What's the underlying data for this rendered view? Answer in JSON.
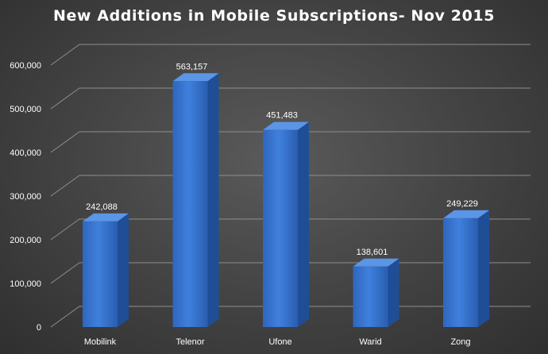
{
  "chart_data": {
    "type": "bar",
    "title": "New Additions in Mobile Subscriptions- Nov 2015",
    "xlabel": "",
    "ylabel": "",
    "categories": [
      "Mobilink",
      "Telenor",
      "Ufone",
      "Warid",
      "Zong"
    ],
    "values": [
      242088,
      563157,
      451483,
      138601,
      249229
    ],
    "value_labels": [
      "242,088",
      "563,157",
      "451,483",
      "138,601",
      "249,229"
    ],
    "yticks": [
      0,
      100000,
      200000,
      300000,
      400000,
      500000,
      600000
    ],
    "ytick_labels": [
      "0",
      "100,000",
      "200,000",
      "300,000",
      "400,000",
      "500,000",
      "600,000"
    ],
    "ylim": [
      0,
      600000
    ],
    "grid": true,
    "legend": "none",
    "bar_color": "#3a78d4"
  }
}
